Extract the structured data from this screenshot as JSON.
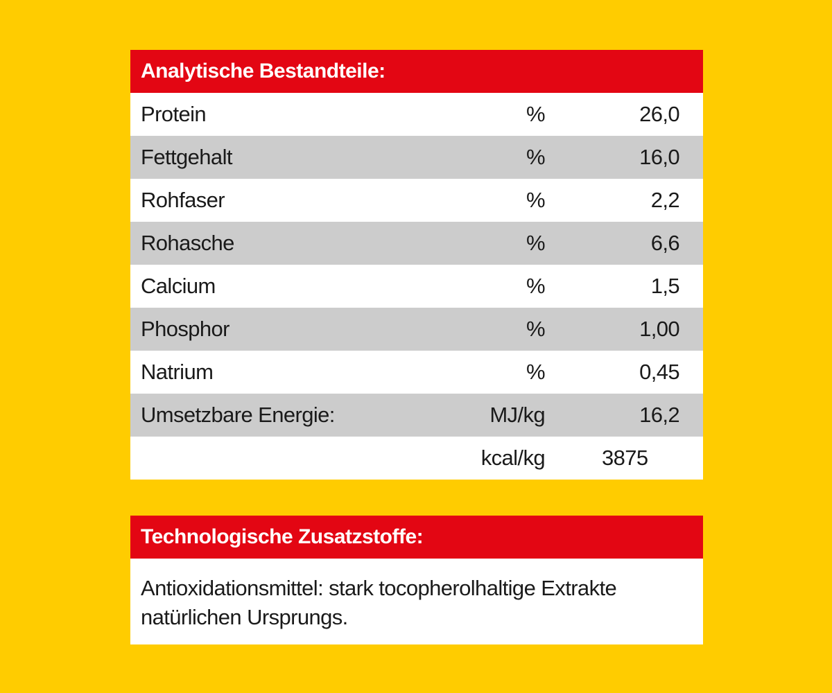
{
  "colors": {
    "background": "#FFCC00",
    "header": "#E30613",
    "row_light": "#FFFFFF",
    "row_shaded": "#CCCCCC"
  },
  "analytic": {
    "title": "Analytische Bestandteile:",
    "rows": [
      {
        "label": "Protein",
        "unit": "%",
        "value": "26,0"
      },
      {
        "label": "Fettgehalt",
        "unit": "%",
        "value": "16,0"
      },
      {
        "label": "Rohfaser",
        "unit": "%",
        "value": "2,2"
      },
      {
        "label": "Rohasche",
        "unit": "%",
        "value": "6,6"
      },
      {
        "label": "Calcium",
        "unit": "%",
        "value": "1,5"
      },
      {
        "label": "Phosphor",
        "unit": "%",
        "value": "1,00"
      },
      {
        "label": "Natrium",
        "unit": "%",
        "value": "0,45"
      },
      {
        "label": "Umsetzbare Energie:",
        "unit": "MJ/kg",
        "value": "16,2"
      },
      {
        "label": "",
        "unit": "kcal/kg",
        "value": "3875"
      }
    ]
  },
  "technological": {
    "title": "Technologische Zusatzstoffe:",
    "lines": [
      "Antioxidationsmittel: stark tocopherolhaltige Extrakte",
      "natürlichen Ursprungs."
    ]
  }
}
